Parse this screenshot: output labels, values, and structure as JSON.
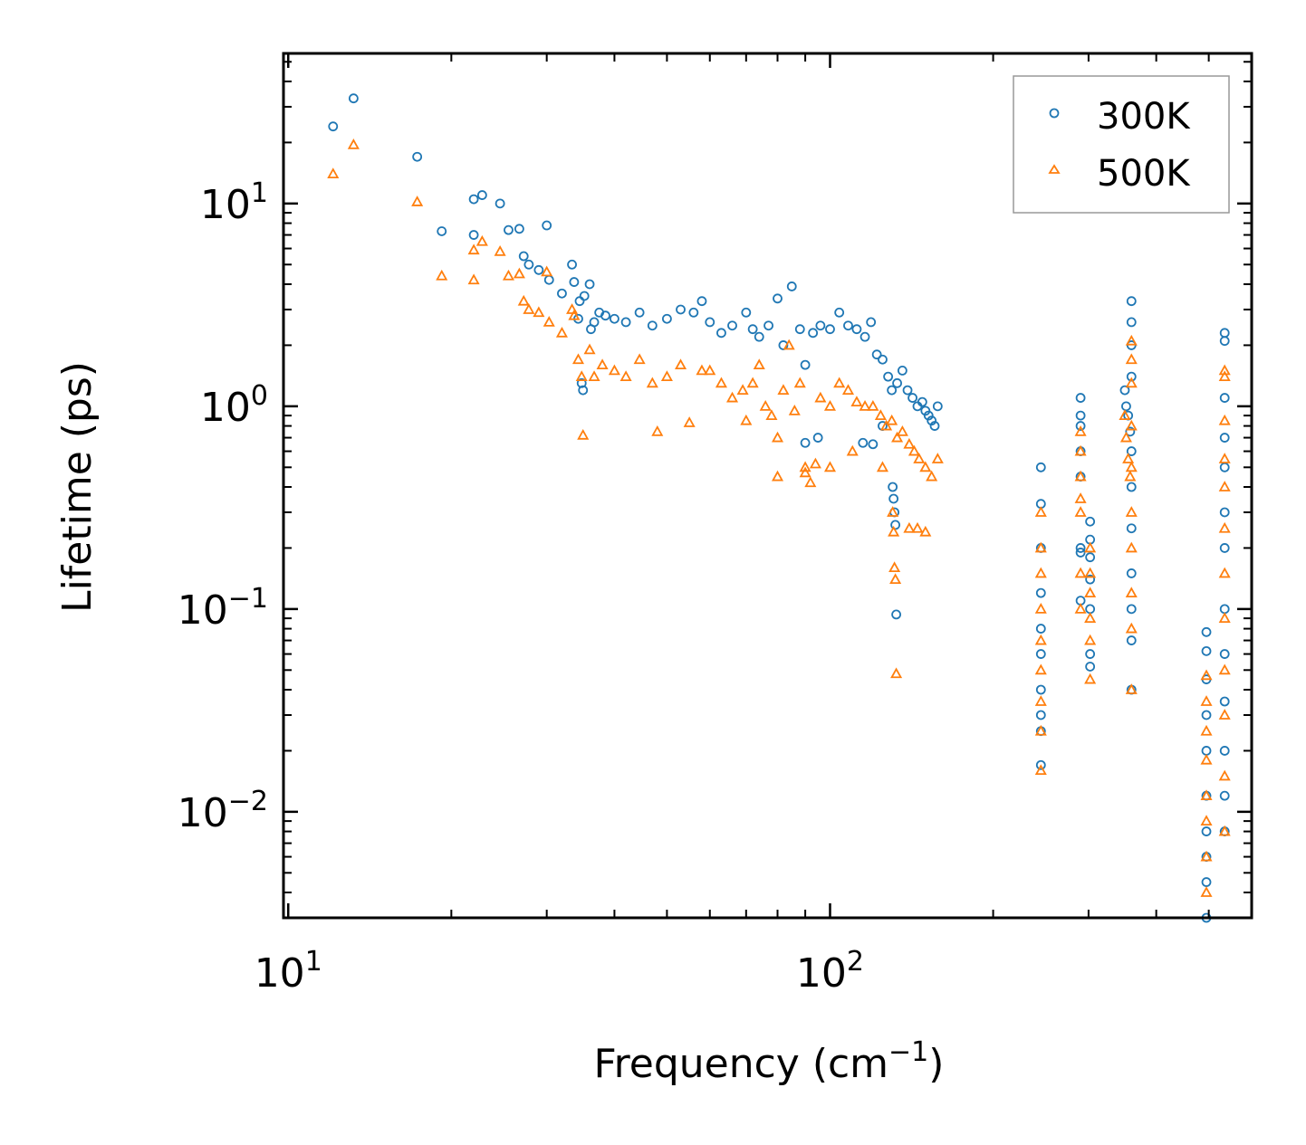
{
  "chart_data": {
    "type": "scatter",
    "title": "",
    "xlabel": "Frequency (cm",
    "xlabel_sup": "−1",
    "xlabel_end": ")",
    "ylabel": "Lifetime (ps)",
    "xscale": "log",
    "yscale": "log",
    "xlim": [
      9.8,
      600
    ],
    "ylim": [
      0.003,
      55
    ],
    "x_ticks": [
      {
        "base": "10",
        "exp": "1",
        "value": 10
      },
      {
        "base": "10",
        "exp": "2",
        "value": 100
      }
    ],
    "y_ticks": [
      {
        "base": "10",
        "exp": "1",
        "value": 10
      },
      {
        "base": "10",
        "exp": "0",
        "value": 1
      },
      {
        "base": "10",
        "exp": "−1",
        "value": 0.1
      },
      {
        "base": "10",
        "exp": "−2",
        "value": 0.01
      }
    ],
    "legend_position": "top-right",
    "series": [
      {
        "name": "300K",
        "marker": "circle",
        "color": "#1f77b4",
        "points": [
          [
            12.1,
            24.0
          ],
          [
            13.2,
            33.0
          ],
          [
            17.3,
            17.0
          ],
          [
            19.2,
            7.3
          ],
          [
            22.0,
            10.5
          ],
          [
            22.8,
            11.0
          ],
          [
            22.0,
            7.0
          ],
          [
            24.6,
            10.0
          ],
          [
            25.5,
            7.4
          ],
          [
            26.7,
            7.5
          ],
          [
            27.2,
            5.5
          ],
          [
            27.8,
            5.0
          ],
          [
            29.0,
            4.7
          ],
          [
            30.0,
            7.8
          ],
          [
            30.3,
            4.2
          ],
          [
            32.0,
            3.6
          ],
          [
            33.4,
            5.0
          ],
          [
            33.7,
            4.1
          ],
          [
            34.5,
            3.3
          ],
          [
            35.2,
            3.5
          ],
          [
            36.0,
            4.0
          ],
          [
            36.7,
            2.6
          ],
          [
            34.3,
            2.7
          ],
          [
            35.0,
            1.2
          ],
          [
            37.5,
            2.9
          ],
          [
            34.8,
            1.3
          ],
          [
            36.2,
            2.4
          ],
          [
            38.5,
            2.8
          ],
          [
            40.0,
            2.7
          ],
          [
            42.0,
            2.6
          ],
          [
            44.5,
            2.9
          ],
          [
            47.0,
            2.5
          ],
          [
            50.0,
            2.7
          ],
          [
            53.0,
            3.0
          ],
          [
            56.0,
            2.9
          ],
          [
            58.0,
            3.3
          ],
          [
            60.0,
            2.6
          ],
          [
            63.0,
            2.3
          ],
          [
            66.0,
            2.5
          ],
          [
            70.0,
            2.9
          ],
          [
            72.0,
            2.4
          ],
          [
            74.0,
            2.2
          ],
          [
            77.0,
            2.5
          ],
          [
            80.0,
            3.4
          ],
          [
            82.0,
            2.0
          ],
          [
            85.0,
            3.9
          ],
          [
            88.0,
            2.4
          ],
          [
            90.0,
            1.6
          ],
          [
            93.0,
            2.3
          ],
          [
            96.0,
            2.5
          ],
          [
            100.0,
            2.4
          ],
          [
            104.0,
            2.9
          ],
          [
            108.0,
            2.5
          ],
          [
            112.0,
            2.4
          ],
          [
            116.0,
            2.2
          ],
          [
            119.0,
            2.6
          ],
          [
            122.0,
            1.8
          ],
          [
            125.0,
            1.7
          ],
          [
            128.0,
            1.4
          ],
          [
            130.0,
            1.2
          ],
          [
            133.0,
            1.3
          ],
          [
            136.0,
            1.5
          ],
          [
            139.0,
            1.2
          ],
          [
            142.0,
            1.1
          ],
          [
            145.0,
            1.0
          ],
          [
            148.0,
            1.05
          ],
          [
            150.0,
            0.95
          ],
          [
            152.0,
            0.9
          ],
          [
            154.0,
            0.85
          ],
          [
            156.0,
            0.8
          ],
          [
            158.0,
            1.0
          ],
          [
            130.5,
            0.4
          ],
          [
            131.0,
            0.35
          ],
          [
            131.5,
            0.3
          ],
          [
            132.0,
            0.26
          ],
          [
            132.5,
            0.094
          ],
          [
            115.0,
            0.66
          ],
          [
            120.0,
            0.65
          ],
          [
            125.0,
            0.8
          ],
          [
            90.0,
            0.66
          ],
          [
            95.0,
            0.7
          ],
          [
            245.0,
            0.5
          ],
          [
            245.0,
            0.33
          ],
          [
            245.0,
            0.2
          ],
          [
            245.0,
            0.12
          ],
          [
            245.0,
            0.08
          ],
          [
            245.0,
            0.06
          ],
          [
            245.0,
            0.04
          ],
          [
            245.0,
            0.03
          ],
          [
            245.0,
            0.025
          ],
          [
            245.0,
            0.017
          ],
          [
            290.0,
            1.1
          ],
          [
            290.0,
            0.9
          ],
          [
            290.0,
            0.8
          ],
          [
            290.0,
            0.6
          ],
          [
            290.0,
            0.45
          ],
          [
            290.0,
            0.2
          ],
          [
            290.0,
            0.19
          ],
          [
            290.0,
            0.11
          ],
          [
            302.0,
            0.27
          ],
          [
            302.0,
            0.22
          ],
          [
            302.0,
            0.18
          ],
          [
            302.0,
            0.14
          ],
          [
            302.0,
            0.1
          ],
          [
            302.0,
            0.06
          ],
          [
            302.0,
            0.052
          ],
          [
            350.0,
            1.2
          ],
          [
            352.0,
            1.0
          ],
          [
            355.0,
            0.9
          ],
          [
            358.0,
            0.75
          ],
          [
            360.0,
            3.3
          ],
          [
            360.0,
            2.6
          ],
          [
            360.0,
            2.0
          ],
          [
            360.0,
            1.4
          ],
          [
            360.0,
            0.6
          ],
          [
            360.0,
            0.4
          ],
          [
            360.0,
            0.25
          ],
          [
            360.0,
            0.15
          ],
          [
            360.0,
            0.1
          ],
          [
            360.0,
            0.07
          ],
          [
            360.0,
            0.04
          ],
          [
            495.0,
            0.077
          ],
          [
            495.0,
            0.062
          ],
          [
            495.0,
            0.045
          ],
          [
            495.0,
            0.03
          ],
          [
            495.0,
            0.02
          ],
          [
            495.0,
            0.012
          ],
          [
            495.0,
            0.008
          ],
          [
            495.0,
            0.006
          ],
          [
            495.0,
            0.0045
          ],
          [
            495.0,
            0.003
          ],
          [
            535.0,
            2.3
          ],
          [
            535.0,
            2.1
          ],
          [
            535.0,
            1.1
          ],
          [
            535.0,
            0.7
          ],
          [
            535.0,
            0.5
          ],
          [
            535.0,
            0.3
          ],
          [
            535.0,
            0.2
          ],
          [
            535.0,
            0.1
          ],
          [
            535.0,
            0.06
          ],
          [
            535.0,
            0.035
          ],
          [
            535.0,
            0.02
          ],
          [
            535.0,
            0.012
          ],
          [
            535.0,
            0.008
          ]
        ]
      },
      {
        "name": "500K",
        "marker": "triangle",
        "color": "#ff7f0e",
        "points": [
          [
            12.1,
            14.0
          ],
          [
            13.2,
            19.5
          ],
          [
            17.3,
            10.2
          ],
          [
            19.2,
            4.4
          ],
          [
            22.0,
            4.2
          ],
          [
            22.0,
            5.9
          ],
          [
            22.8,
            6.5
          ],
          [
            24.6,
            5.8
          ],
          [
            25.5,
            4.4
          ],
          [
            26.7,
            4.5
          ],
          [
            27.2,
            3.3
          ],
          [
            27.8,
            3.0
          ],
          [
            29.0,
            2.9
          ],
          [
            30.0,
            4.6
          ],
          [
            30.3,
            2.6
          ],
          [
            32.0,
            2.3
          ],
          [
            33.4,
            3.0
          ],
          [
            33.7,
            2.8
          ],
          [
            34.3,
            1.7
          ],
          [
            34.8,
            1.4
          ],
          [
            35.0,
            0.72
          ],
          [
            36.0,
            1.9
          ],
          [
            36.7,
            1.4
          ],
          [
            38.0,
            1.6
          ],
          [
            40.0,
            1.5
          ],
          [
            42.0,
            1.4
          ],
          [
            44.5,
            1.7
          ],
          [
            47.0,
            1.3
          ],
          [
            48.0,
            0.75
          ],
          [
            50.0,
            1.4
          ],
          [
            53.0,
            1.6
          ],
          [
            55.0,
            0.83
          ],
          [
            58.0,
            1.5
          ],
          [
            60.0,
            1.5
          ],
          [
            63.0,
            1.3
          ],
          [
            66.0,
            1.1
          ],
          [
            69.0,
            1.2
          ],
          [
            70.0,
            0.85
          ],
          [
            72.0,
            1.3
          ],
          [
            74.0,
            1.6
          ],
          [
            76.0,
            1.0
          ],
          [
            78.0,
            0.9
          ],
          [
            80.0,
            0.7
          ],
          [
            82.0,
            1.2
          ],
          [
            84.0,
            2.0
          ],
          [
            86.0,
            0.95
          ],
          [
            88.0,
            1.3
          ],
          [
            90.0,
            0.5
          ],
          [
            92.0,
            0.42
          ],
          [
            94.0,
            0.52
          ],
          [
            96.0,
            1.1
          ],
          [
            100.0,
            1.0
          ],
          [
            104.0,
            1.3
          ],
          [
            108.0,
            1.2
          ],
          [
            112.0,
            1.05
          ],
          [
            116.0,
            1.0
          ],
          [
            120.0,
            1.0
          ],
          [
            124.0,
            0.9
          ],
          [
            127.0,
            0.8
          ],
          [
            130.0,
            0.85
          ],
          [
            133.0,
            0.7
          ],
          [
            136.0,
            0.75
          ],
          [
            140.0,
            0.65
          ],
          [
            143.0,
            0.6
          ],
          [
            146.0,
            0.55
          ],
          [
            150.0,
            0.5
          ],
          [
            154.0,
            0.45
          ],
          [
            158.0,
            0.55
          ],
          [
            130.5,
            0.3
          ],
          [
            131.0,
            0.24
          ],
          [
            131.5,
            0.16
          ],
          [
            132.0,
            0.14
          ],
          [
            132.5,
            0.048
          ],
          [
            140.0,
            0.25
          ],
          [
            145.0,
            0.25
          ],
          [
            150.0,
            0.24
          ],
          [
            80.0,
            0.45
          ],
          [
            90.0,
            0.47
          ],
          [
            100.0,
            0.5
          ],
          [
            110.0,
            0.6
          ],
          [
            125.0,
            0.5
          ],
          [
            245.0,
            0.3
          ],
          [
            245.0,
            0.2
          ],
          [
            245.0,
            0.15
          ],
          [
            245.0,
            0.1
          ],
          [
            245.0,
            0.07
          ],
          [
            245.0,
            0.05
          ],
          [
            245.0,
            0.035
          ],
          [
            245.0,
            0.025
          ],
          [
            245.0,
            0.016
          ],
          [
            290.0,
            0.75
          ],
          [
            290.0,
            0.6
          ],
          [
            290.0,
            0.45
          ],
          [
            290.0,
            0.35
          ],
          [
            290.0,
            0.3
          ],
          [
            290.0,
            0.15
          ],
          [
            290.0,
            0.1
          ],
          [
            302.0,
            0.2
          ],
          [
            302.0,
            0.15
          ],
          [
            302.0,
            0.12
          ],
          [
            302.0,
            0.09
          ],
          [
            302.0,
            0.07
          ],
          [
            302.0,
            0.045
          ],
          [
            350.0,
            0.9
          ],
          [
            352.0,
            0.7
          ],
          [
            355.0,
            0.55
          ],
          [
            358.0,
            0.45
          ],
          [
            360.0,
            2.1
          ],
          [
            360.0,
            1.7
          ],
          [
            360.0,
            1.3
          ],
          [
            360.0,
            0.8
          ],
          [
            360.0,
            0.5
          ],
          [
            360.0,
            0.3
          ],
          [
            360.0,
            0.2
          ],
          [
            360.0,
            0.12
          ],
          [
            360.0,
            0.08
          ],
          [
            360.0,
            0.04
          ],
          [
            495.0,
            0.047
          ],
          [
            495.0,
            0.035
          ],
          [
            495.0,
            0.025
          ],
          [
            495.0,
            0.018
          ],
          [
            495.0,
            0.012
          ],
          [
            495.0,
            0.009
          ],
          [
            495.0,
            0.006
          ],
          [
            495.0,
            0.004
          ],
          [
            535.0,
            1.5
          ],
          [
            535.0,
            1.4
          ],
          [
            535.0,
            0.85
          ],
          [
            535.0,
            0.55
          ],
          [
            535.0,
            0.4
          ],
          [
            535.0,
            0.25
          ],
          [
            535.0,
            0.15
          ],
          [
            535.0,
            0.09
          ],
          [
            535.0,
            0.05
          ],
          [
            535.0,
            0.03
          ],
          [
            535.0,
            0.015
          ],
          [
            535.0,
            0.008
          ]
        ]
      }
    ]
  }
}
